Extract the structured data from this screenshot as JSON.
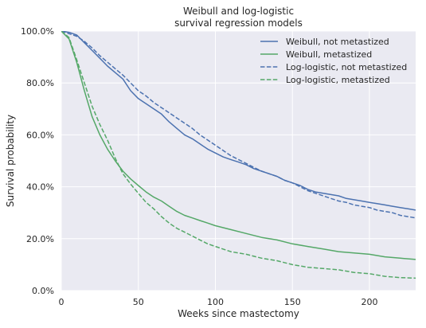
{
  "chart_data": {
    "type": "line",
    "title": "Weibull and log-logistic\nsurvival regression models",
    "xlabel": "Weeks since mastectomy",
    "ylabel": "Survival probability",
    "xlim": [
      0,
      230
    ],
    "ylim": [
      0,
      1
    ],
    "x_ticks": [
      0,
      50,
      100,
      150,
      200
    ],
    "y_ticks": [
      0,
      0.2,
      0.4,
      0.6,
      0.8,
      1.0
    ],
    "y_tick_labels": [
      "0.0%",
      "20.0%",
      "40.0%",
      "60.0%",
      "80.0%",
      "100.0%"
    ],
    "grid": true,
    "legend_position": "top-right",
    "background": "#eaeaf2",
    "series": [
      {
        "name": "Weibull, not metastized",
        "color": "#4c72b0",
        "dash": "solid",
        "x": [
          0,
          5,
          10,
          15,
          20,
          25,
          30,
          35,
          40,
          45,
          50,
          55,
          60,
          65,
          70,
          75,
          80,
          85,
          90,
          95,
          100,
          105,
          110,
          115,
          120,
          125,
          130,
          135,
          140,
          145,
          150,
          155,
          160,
          165,
          170,
          175,
          180,
          185,
          190,
          195,
          200,
          205,
          210,
          215,
          220,
          225,
          230
        ],
        "y": [
          1.0,
          0.995,
          0.985,
          0.955,
          0.925,
          0.895,
          0.865,
          0.84,
          0.815,
          0.77,
          0.74,
          0.72,
          0.7,
          0.68,
          0.65,
          0.625,
          0.6,
          0.585,
          0.565,
          0.545,
          0.53,
          0.515,
          0.505,
          0.495,
          0.485,
          0.47,
          0.46,
          0.45,
          0.44,
          0.425,
          0.415,
          0.405,
          0.39,
          0.38,
          0.375,
          0.37,
          0.365,
          0.355,
          0.35,
          0.345,
          0.34,
          0.335,
          0.33,
          0.325,
          0.32,
          0.315,
          0.31
        ]
      },
      {
        "name": "Weibull, metastized",
        "color": "#55a868",
        "dash": "solid",
        "x": [
          0,
          5,
          10,
          15,
          20,
          25,
          30,
          35,
          40,
          45,
          50,
          55,
          60,
          65,
          70,
          75,
          80,
          85,
          90,
          95,
          100,
          110,
          120,
          130,
          140,
          150,
          160,
          170,
          180,
          190,
          200,
          210,
          220,
          230
        ],
        "y": [
          1.0,
          0.97,
          0.88,
          0.77,
          0.67,
          0.6,
          0.545,
          0.5,
          0.46,
          0.43,
          0.405,
          0.38,
          0.36,
          0.345,
          0.325,
          0.305,
          0.29,
          0.28,
          0.27,
          0.26,
          0.25,
          0.235,
          0.22,
          0.205,
          0.195,
          0.18,
          0.17,
          0.16,
          0.15,
          0.145,
          0.14,
          0.13,
          0.125,
          0.12
        ]
      },
      {
        "name": "Log-logistic, not metastized",
        "color": "#4c72b0",
        "dash": "dashed",
        "x": [
          0,
          5,
          10,
          15,
          20,
          25,
          30,
          35,
          40,
          45,
          50,
          55,
          60,
          65,
          70,
          75,
          80,
          85,
          90,
          95,
          100,
          105,
          110,
          115,
          120,
          125,
          130,
          135,
          140,
          145,
          150,
          155,
          160,
          165,
          170,
          175,
          180,
          185,
          190,
          195,
          200,
          205,
          210,
          215,
          220,
          225,
          230
        ],
        "y": [
          1.0,
          0.99,
          0.98,
          0.96,
          0.935,
          0.905,
          0.88,
          0.855,
          0.83,
          0.8,
          0.77,
          0.75,
          0.725,
          0.705,
          0.685,
          0.665,
          0.645,
          0.625,
          0.6,
          0.58,
          0.56,
          0.54,
          0.52,
          0.505,
          0.49,
          0.475,
          0.46,
          0.45,
          0.44,
          0.425,
          0.415,
          0.4,
          0.385,
          0.375,
          0.365,
          0.355,
          0.345,
          0.34,
          0.33,
          0.325,
          0.32,
          0.31,
          0.305,
          0.3,
          0.29,
          0.285,
          0.28
        ]
      },
      {
        "name": "Log-logistic, metastized",
        "color": "#55a868",
        "dash": "dashed",
        "x": [
          0,
          5,
          10,
          15,
          20,
          25,
          30,
          35,
          40,
          45,
          50,
          55,
          60,
          65,
          70,
          75,
          80,
          85,
          90,
          95,
          100,
          110,
          120,
          130,
          140,
          150,
          160,
          170,
          180,
          190,
          200,
          210,
          220,
          230
        ],
        "y": [
          1.0,
          0.975,
          0.89,
          0.8,
          0.71,
          0.64,
          0.58,
          0.51,
          0.45,
          0.41,
          0.375,
          0.34,
          0.315,
          0.285,
          0.26,
          0.24,
          0.225,
          0.21,
          0.195,
          0.18,
          0.17,
          0.15,
          0.14,
          0.125,
          0.115,
          0.1,
          0.09,
          0.085,
          0.08,
          0.07,
          0.065,
          0.055,
          0.05,
          0.048
        ]
      }
    ]
  }
}
